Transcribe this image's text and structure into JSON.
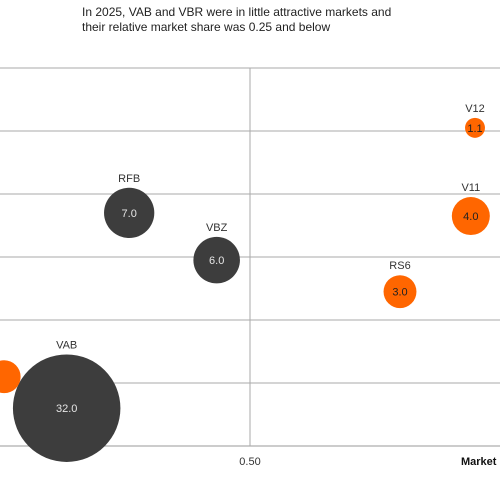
{
  "caption": {
    "line1": "In 2025, VAB and VBR were in little attractive markets and",
    "line2": "their relative market share was 0.25 and below"
  },
  "chart_data": {
    "type": "bubble",
    "x_axis": {
      "title": "Market",
      "ticks": [
        0.5
      ],
      "tick_labels": [
        "0.50"
      ],
      "range": [
        0.2,
        0.8
      ]
    },
    "y_axis": {
      "range": [
        0,
        6
      ],
      "gridlines": [
        1,
        2,
        3,
        4,
        5
      ]
    },
    "grid": true,
    "colors": {
      "dark": "#3d3d3d",
      "orange": "#ff6600"
    },
    "points": [
      {
        "name": "V12",
        "x": 0.77,
        "y": 5.05,
        "size": 1.1,
        "value_label": "1.1",
        "color": "orange"
      },
      {
        "name": "V11",
        "x": 0.765,
        "y": 3.65,
        "size": 4.0,
        "value_label": "4.0",
        "color": "orange"
      },
      {
        "name": "RS6",
        "x": 0.68,
        "y": 2.45,
        "size": 3.0,
        "value_label": "3.0",
        "color": "orange"
      },
      {
        "name": "RFB",
        "x": 0.355,
        "y": 3.7,
        "size": 7.0,
        "value_label": "7.0",
        "color": "dark"
      },
      {
        "name": "VBZ",
        "x": 0.46,
        "y": 2.95,
        "size": 6.0,
        "value_label": "6.0",
        "color": "dark"
      },
      {
        "name": "VAB",
        "x": 0.28,
        "y": 0.6,
        "size": 32.0,
        "value_label": "32.0",
        "color": "dark"
      },
      {
        "name": "",
        "x": 0.205,
        "y": 1.1,
        "size": 3.0,
        "value_label": "",
        "color": "orange"
      }
    ]
  }
}
